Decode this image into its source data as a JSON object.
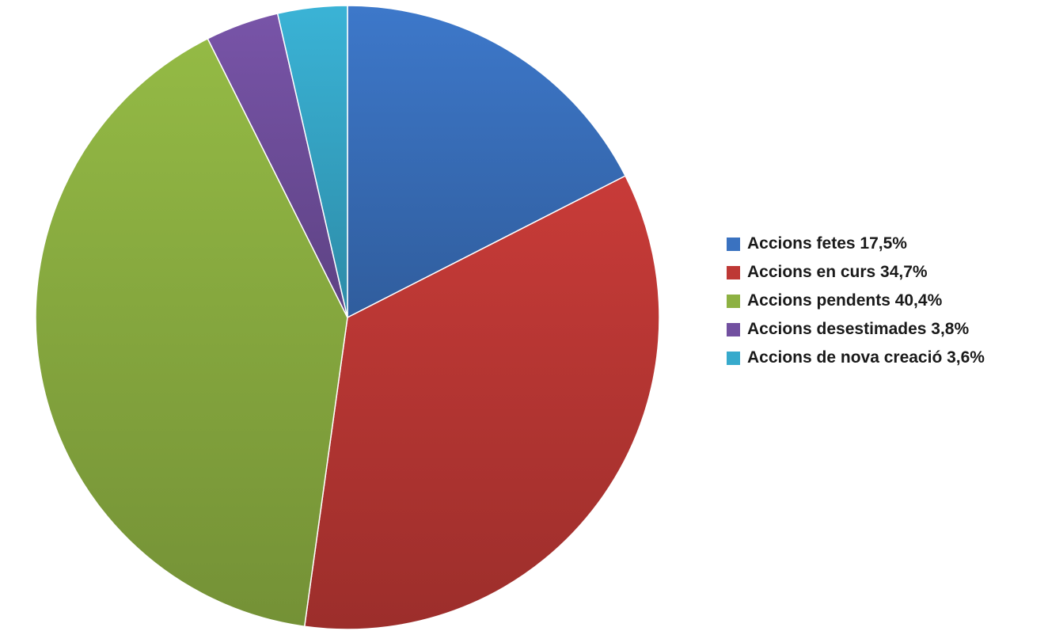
{
  "chart_data": {
    "type": "pie",
    "title": "",
    "legend_position": "right",
    "start_angle_deg": 0,
    "direction": "clockwise",
    "slices": [
      {
        "label": "Accions fetes 17,5%",
        "value": 17.5,
        "color": "#3A72C0"
      },
      {
        "label": "Accions en curs 34,7%",
        "value": 34.7,
        "color": "#BE3835"
      },
      {
        "label": "Accions pendents 40,4%",
        "value": 40.4,
        "color": "#8DB142"
      },
      {
        "label": "Accions desestimades 3,8%",
        "value": 3.8,
        "color": "#7250A0"
      },
      {
        "label": "Accions de nova creació 3,6%",
        "value": 3.6,
        "color": "#37AACC"
      }
    ]
  }
}
